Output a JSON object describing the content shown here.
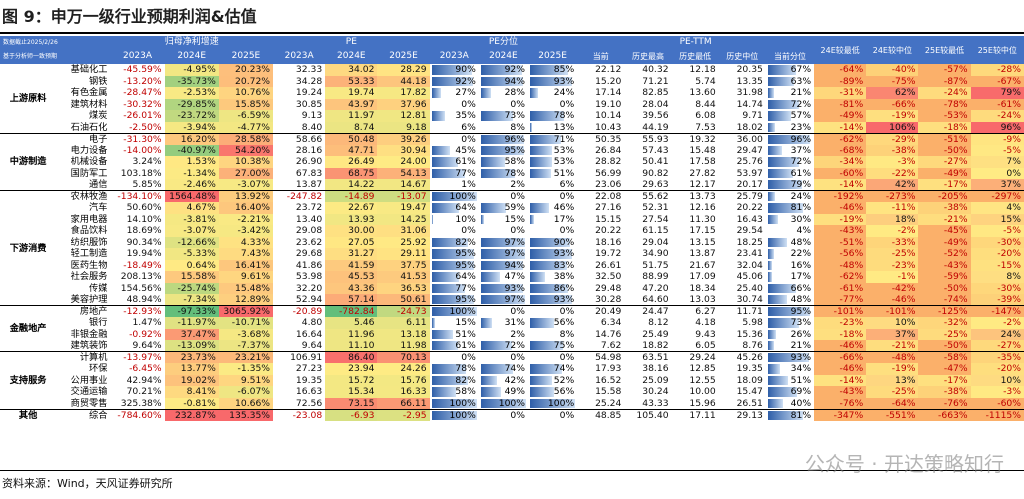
{
  "title": "图 9：申万一级行业预期利润&估值",
  "source": "资料来源：Wind，天风证券研究所",
  "watermark": "公众号 · 开达策略知行",
  "header": {
    "date_note": "数据截止2025/2/26",
    "basis_note": "基于分析师一致预期",
    "groups": [
      "归母净利增速",
      "PE",
      "PE分位",
      "PE-TTM"
    ],
    "years": [
      "2023A",
      "2024E",
      "2025E"
    ],
    "ttm_cols": [
      "当前",
      "历史最高",
      "历史最低",
      "历史中位",
      "当前分位"
    ],
    "tail_cols": [
      "24E较最低",
      "24E较中位",
      "25E较最低",
      "25E较中位"
    ]
  },
  "rows": [
    {
      "cat": "上游原料",
      "ind": "基础化工",
      "g": [
        "-45.59%",
        "-4.95%",
        "20.23%"
      ],
      "pe": [
        "32.33",
        "34.02",
        "28.29"
      ],
      "pp": [
        "90%",
        "92%",
        "85%"
      ],
      "ttm": [
        "22.12",
        "40.32",
        "12.18",
        "20.35",
        "67%"
      ],
      "t": [
        "-64%",
        "-40%",
        "-57%",
        "-28%"
      ]
    },
    {
      "cat": "",
      "ind": "钢铁",
      "g": [
        "-13.20%",
        "-35.73%",
        "20.72%"
      ],
      "pe": [
        "34.28",
        "53.33",
        "44.18"
      ],
      "pp": [
        "92%",
        "94%",
        "93%"
      ],
      "ttm": [
        "15.20",
        "71.21",
        "5.74",
        "13.35",
        "63%"
      ],
      "t": [
        "-89%",
        "-75%",
        "-87%",
        "-67%"
      ]
    },
    {
      "cat": "",
      "ind": "有色金属",
      "g": [
        "-28.47%",
        "-2.53%",
        "10.76%"
      ],
      "pe": [
        "19.24",
        "19.74",
        "17.82"
      ],
      "pp": [
        "27%",
        "28%",
        "24%"
      ],
      "ttm": [
        "17.14",
        "82.85",
        "13.60",
        "31.98",
        "21%"
      ],
      "t": [
        "-31%",
        "62%",
        "-24%",
        "79%"
      ]
    },
    {
      "cat": "",
      "ind": "建筑材料",
      "g": [
        "-30.32%",
        "-29.85%",
        "15.85%"
      ],
      "pe": [
        "30.85",
        "43.97",
        "37.96"
      ],
      "pp": [
        "0%",
        "0%",
        "0%"
      ],
      "ttm": [
        "19.10",
        "28.04",
        "8.44",
        "14.74",
        "72%"
      ],
      "t": [
        "-81%",
        "-66%",
        "-78%",
        "-61%"
      ]
    },
    {
      "cat": "",
      "ind": "煤炭",
      "g": [
        "-26.01%",
        "-23.72%",
        "-6.59%"
      ],
      "pe": [
        "9.13",
        "11.97",
        "12.81"
      ],
      "pp": [
        "35%",
        "73%",
        "78%"
      ],
      "ttm": [
        "10.14",
        "39.56",
        "6.08",
        "9.71",
        "57%"
      ],
      "t": [
        "-49%",
        "-19%",
        "-53%",
        "-24%"
      ]
    },
    {
      "cat": "",
      "ind": "石油石化",
      "g": [
        "-2.50%",
        "-3.94%",
        "-4.77%"
      ],
      "pe": [
        "8.40",
        "8.74",
        "9.18"
      ],
      "pp": [
        "6%",
        "8%",
        "13%"
      ],
      "ttm": [
        "10.43",
        "44.19",
        "7.53",
        "18.02",
        "23%"
      ],
      "t": [
        "-14%",
        "106%",
        "-18%",
        "96%"
      ]
    },
    {
      "cat": "中游制造",
      "ind": "电子",
      "g": [
        "-31.30%",
        "16.20%",
        "28.58%"
      ],
      "pe": [
        "58.66",
        "50.48",
        "39.26"
      ],
      "pp": [
        "0%",
        "96%",
        "71%"
      ],
      "ttm": [
        "50.35",
        "55.93",
        "19.32",
        "36.00",
        "96%"
      ],
      "t": [
        "-62%",
        "-29%",
        "-51%",
        "-9%"
      ]
    },
    {
      "cat": "",
      "ind": "电力设备",
      "g": [
        "-14.00%",
        "-40.97%",
        "54.20%"
      ],
      "pe": [
        "28.16",
        "47.71",
        "30.94"
      ],
      "pp": [
        "45%",
        "95%",
        "53%"
      ],
      "ttm": [
        "26.84",
        "57.43",
        "15.48",
        "29.47",
        "37%"
      ],
      "t": [
        "-68%",
        "-38%",
        "-50%",
        "-5%"
      ]
    },
    {
      "cat": "",
      "ind": "机械设备",
      "g": [
        "3.24%",
        "1.53%",
        "10.38%"
      ],
      "pe": [
        "26.90",
        "26.49",
        "24.00"
      ],
      "pp": [
        "61%",
        "58%",
        "53%"
      ],
      "ttm": [
        "28.82",
        "50.41",
        "17.58",
        "25.76",
        "72%"
      ],
      "t": [
        "-34%",
        "-3%",
        "-27%",
        "7%"
      ]
    },
    {
      "cat": "",
      "ind": "国防军工",
      "g": [
        "103.18%",
        "-1.34%",
        "27.00%"
      ],
      "pe": [
        "67.83",
        "68.75",
        "54.13"
      ],
      "pp": [
        "77%",
        "78%",
        "51%"
      ],
      "ttm": [
        "56.99",
        "90.82",
        "27.82",
        "53.97",
        "61%"
      ],
      "t": [
        "-60%",
        "-22%",
        "-49%",
        "0%"
      ]
    },
    {
      "cat": "",
      "ind": "通信",
      "g": [
        "5.85%",
        "-2.46%",
        "-3.07%"
      ],
      "pe": [
        "13.87",
        "14.22",
        "14.67"
      ],
      "pp": [
        "1%",
        "2%",
        "6%"
      ],
      "ttm": [
        "23.06",
        "29.63",
        "12.17",
        "20.17",
        "79%"
      ],
      "t": [
        "-14%",
        "42%",
        "-17%",
        "37%"
      ]
    },
    {
      "cat": "下游消费",
      "ind": "农林牧渔",
      "g": [
        "-134.10%",
        "1564.48%",
        "13.92%"
      ],
      "pe": [
        "-247.82",
        "-14.89",
        "-13.07"
      ],
      "pp": [
        "100%",
        "0%",
        "0%"
      ],
      "ttm": [
        "22.08",
        "55.62",
        "13.73",
        "25.79",
        "24%"
      ],
      "t": [
        "-192%",
        "-273%",
        "-205%",
        "-297%"
      ]
    },
    {
      "cat": "",
      "ind": "汽车",
      "g": [
        "50.60%",
        "4.67%",
        "16.40%"
      ],
      "pe": [
        "23.72",
        "22.67",
        "19.47"
      ],
      "pp": [
        "64%",
        "59%",
        "46%"
      ],
      "ttm": [
        "27.16",
        "52.31",
        "12.16",
        "20.22",
        "81%"
      ],
      "t": [
        "-46%",
        "-11%",
        "-38%",
        "4%"
      ]
    },
    {
      "cat": "",
      "ind": "家用电器",
      "g": [
        "14.10%",
        "-3.81%",
        "-2.21%"
      ],
      "pe": [
        "13.40",
        "13.93",
        "14.25"
      ],
      "pp": [
        "10%",
        "15%",
        "17%"
      ],
      "ttm": [
        "15.15",
        "27.54",
        "11.30",
        "16.43",
        "30%"
      ],
      "t": [
        "-19%",
        "18%",
        "-21%",
        "15%"
      ]
    },
    {
      "cat": "",
      "ind": "食品饮料",
      "g": [
        "18.69%",
        "-3.07%",
        "-3.42%"
      ],
      "pe": [
        "29.08",
        "30.00",
        "31.06"
      ],
      "pp": [
        "0%",
        "0%",
        "0%"
      ],
      "ttm": [
        "20.22",
        "61.15",
        "17.15",
        "29.54",
        "4%"
      ],
      "t": [
        "-43%",
        "-2%",
        "-45%",
        "-5%"
      ]
    },
    {
      "cat": "",
      "ind": "纺织服饰",
      "g": [
        "90.34%",
        "-12.66%",
        "4.33%"
      ],
      "pe": [
        "23.62",
        "27.05",
        "25.92"
      ],
      "pp": [
        "82%",
        "97%",
        "90%"
      ],
      "ttm": [
        "18.16",
        "29.04",
        "13.15",
        "18.25",
        "48%"
      ],
      "t": [
        "-51%",
        "-33%",
        "-49%",
        "-30%"
      ]
    },
    {
      "cat": "",
      "ind": "轻工制造",
      "g": [
        "19.94%",
        "-5.33%",
        "7.43%"
      ],
      "pe": [
        "29.68",
        "31.27",
        "29.11"
      ],
      "pp": [
        "95%",
        "97%",
        "93%"
      ],
      "ttm": [
        "19.72",
        "34.90",
        "13.87",
        "23.41",
        "22%"
      ],
      "t": [
        "-56%",
        "-25%",
        "-52%",
        "-20%"
      ]
    },
    {
      "cat": "",
      "ind": "医药生物",
      "g": [
        "-18.49%",
        "0.64%",
        "16.41%"
      ],
      "pe": [
        "41.86",
        "41.59",
        "37.75"
      ],
      "pp": [
        "95%",
        "94%",
        "83%"
      ],
      "ttm": [
        "26.61",
        "51.75",
        "21.67",
        "32.04",
        "16%"
      ],
      "t": [
        "-48%",
        "-23%",
        "-43%",
        "-15%"
      ]
    },
    {
      "cat": "",
      "ind": "社会服务",
      "g": [
        "208.13%",
        "15.58%",
        "9.61%"
      ],
      "pe": [
        "53.98",
        "45.53",
        "41.53"
      ],
      "pp": [
        "64%",
        "47%",
        "38%"
      ],
      "ttm": [
        "32.50",
        "88.99",
        "17.09",
        "45.06",
        "17%"
      ],
      "t": [
        "-62%",
        "-1%",
        "-59%",
        "8%"
      ]
    },
    {
      "cat": "",
      "ind": "传媒",
      "g": [
        "154.56%",
        "-25.74%",
        "15.48%"
      ],
      "pe": [
        "32.20",
        "43.36",
        "36.53"
      ],
      "pp": [
        "77%",
        "93%",
        "86%"
      ],
      "ttm": [
        "29.48",
        "47.20",
        "18.34",
        "25.40",
        "66%"
      ],
      "t": [
        "-61%",
        "-42%",
        "-50%",
        "-30%"
      ]
    },
    {
      "cat": "",
      "ind": "美容护理",
      "g": [
        "48.94%",
        "-7.34%",
        "12.89%"
      ],
      "pe": [
        "52.94",
        "57.14",
        "50.61"
      ],
      "pp": [
        "95%",
        "97%",
        "93%"
      ],
      "ttm": [
        "30.28",
        "64.60",
        "13.03",
        "30.74",
        "48%"
      ],
      "t": [
        "-77%",
        "-46%",
        "-74%",
        "-39%"
      ]
    },
    {
      "cat": "金融地产",
      "ind": "房地产",
      "g": [
        "-12.93%",
        "-97.33%",
        "3065.92%"
      ],
      "pe": [
        "-20.89",
        "-782.84",
        "-24.73"
      ],
      "pp": [
        "100%",
        "0%",
        "0%"
      ],
      "ttm": [
        "20.49",
        "24.47",
        "6.27",
        "11.71",
        "95%"
      ],
      "t": [
        "-101%",
        "-101%",
        "-125%",
        "-147%"
      ]
    },
    {
      "cat": "",
      "ind": "银行",
      "g": [
        "1.47%",
        "-11.97%",
        "-10.71%"
      ],
      "pe": [
        "4.80",
        "5.46",
        "6.11"
      ],
      "pp": [
        "15%",
        "31%",
        "56%"
      ],
      "ttm": [
        "6.34",
        "8.12",
        "4.18",
        "5.98",
        "73%"
      ],
      "t": [
        "-23%",
        "10%",
        "-32%",
        "-2%"
      ]
    },
    {
      "cat": "",
      "ind": "非银金融",
      "g": [
        "-0.92%",
        "37.47%",
        "-3.68%"
      ],
      "pe": [
        "16.64",
        "11.96",
        "13.18"
      ],
      "pp": [
        "51%",
        "2%",
        "8%"
      ],
      "ttm": [
        "14.76",
        "25.49",
        "9.43",
        "15.36",
        "26%"
      ],
      "t": [
        "-18%",
        "37%",
        "-25%",
        "24%"
      ]
    },
    {
      "cat": "",
      "ind": "建筑装饰",
      "g": [
        "9.64%",
        "-13.09%",
        "-7.37%"
      ],
      "pe": [
        "9.64",
        "11.10",
        "11.98"
      ],
      "pp": [
        "61%",
        "72%",
        "75%"
      ],
      "ttm": [
        "7.62",
        "18.82",
        "6.05",
        "8.76",
        "21%"
      ],
      "t": [
        "-46%",
        "-21%",
        "-50%",
        "-27%"
      ]
    },
    {
      "cat": "支持服务",
      "ind": "计算机",
      "g": [
        "-13.97%",
        "23.73%",
        "23.21%"
      ],
      "pe": [
        "106.91",
        "86.40",
        "70.13"
      ],
      "pp": [
        "0%",
        "0%",
        "0%"
      ],
      "ttm": [
        "54.98",
        "63.51",
        "29.24",
        "45.26",
        "93%"
      ],
      "t": [
        "-66%",
        "-48%",
        "-58%",
        "-35%"
      ]
    },
    {
      "cat": "",
      "ind": "环保",
      "g": [
        "-6.45%",
        "13.77%",
        "-1.35%"
      ],
      "pe": [
        "27.23",
        "23.94",
        "24.26"
      ],
      "pp": [
        "78%",
        "74%",
        "74%"
      ],
      "ttm": [
        "17.93",
        "38.16",
        "12.85",
        "19.35",
        "34%"
      ],
      "t": [
        "-46%",
        "-19%",
        "-47%",
        "-20%"
      ]
    },
    {
      "cat": "",
      "ind": "公用事业",
      "g": [
        "42.94%",
        "19.02%",
        "9.51%"
      ],
      "pe": [
        "19.35",
        "15.72",
        "15.76"
      ],
      "pp": [
        "82%",
        "42%",
        "52%"
      ],
      "ttm": [
        "16.52",
        "25.09",
        "12.55",
        "18.09",
        "51%"
      ],
      "t": [
        "-14%",
        "13%",
        "-17%",
        "10%"
      ]
    },
    {
      "cat": "",
      "ind": "交通运输",
      "g": [
        "70.21%",
        "8.41%",
        "-6.07%"
      ],
      "pe": [
        "16.63",
        "15.34",
        "16.33"
      ],
      "pp": [
        "58%",
        "49%",
        "56%"
      ],
      "ttm": [
        "15.58",
        "30.24",
        "10.00",
        "15.47",
        "69%"
      ],
      "t": [
        "-43%",
        "-25%",
        "-38%",
        "-3%"
      ]
    },
    {
      "cat": "",
      "ind": "商贸零售",
      "g": [
        "325.38%",
        "-0.81%",
        "10.66%"
      ],
      "pe": [
        "72.56",
        "73.15",
        "66.11"
      ],
      "pp": [
        "100%",
        "100%",
        "100%"
      ],
      "ttm": [
        "25.24",
        "43.33",
        "15.96",
        "26.51",
        "40%"
      ],
      "t": [
        "-76%",
        "-64%",
        "-76%",
        "-60%"
      ]
    },
    {
      "cat": "其他",
      "ind": "综合",
      "g": [
        "-784.60%",
        "232.87%",
        "135.35%"
      ],
      "pe": [
        "-23.08",
        "-6.93",
        "-2.95"
      ],
      "pp": [
        "100%",
        "0%",
        "0%"
      ],
      "ttm": [
        "48.85",
        "105.40",
        "17.11",
        "29.13",
        "81%"
      ],
      "t": [
        "-347%",
        "-551%",
        "-663%",
        "-1115%"
      ]
    }
  ],
  "colors": {
    "header": "#4472c4",
    "green": "#63be7b",
    "red": "#f8696b",
    "yellow": "#ffeb84",
    "orange": "#fbb06a",
    "text_neg": "#c00000"
  }
}
